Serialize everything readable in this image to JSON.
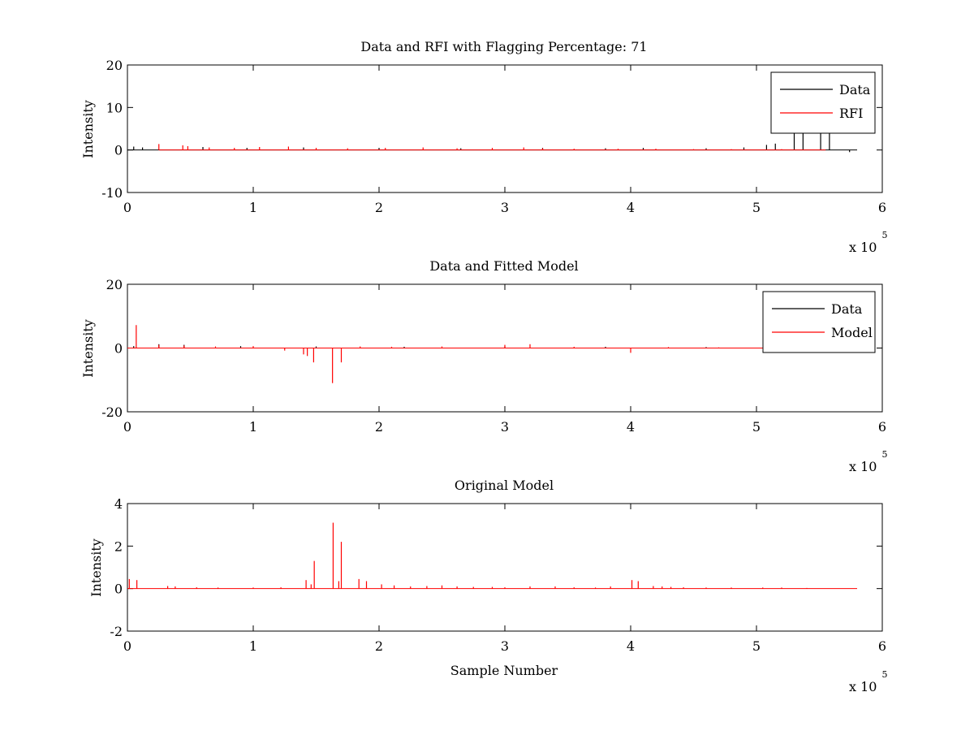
{
  "figure": {
    "background": "#ffffff"
  },
  "colors": {
    "data": "#000000",
    "rfi": "#ff0000",
    "model": "#ff0000",
    "axes": "#000000"
  },
  "chart_data": [
    {
      "type": "line",
      "title": "Data and RFI with Flagging Percentage: 71",
      "xlabel": "",
      "ylabel": "Intensity",
      "xlim": [
        0,
        600000
      ],
      "ylim": [
        -10,
        20
      ],
      "xticks": [
        0,
        1,
        2,
        3,
        4,
        5,
        6
      ],
      "yticks": [
        -10,
        0,
        10,
        20
      ],
      "x_exponent": {
        "base": "x 10",
        "power": "5"
      },
      "grid": false,
      "legend": {
        "position": "top-right",
        "entries": [
          "Data",
          "RFI"
        ]
      },
      "series": [
        {
          "name": "Data",
          "color": "#000000",
          "baseline": 0,
          "x_range": [
            0,
            580000
          ],
          "spikes": [
            [
              5000,
              0.8
            ],
            [
              12000,
              0.6
            ],
            [
              60000,
              0.7
            ],
            [
              95000,
              0.5
            ],
            [
              140000,
              0.6
            ],
            [
              200000,
              0.5
            ],
            [
              265000,
              0.4
            ],
            [
              330000,
              0.5
            ],
            [
              380000,
              0.4
            ],
            [
              410000,
              0.5
            ],
            [
              460000,
              0.4
            ],
            [
              490000,
              0.6
            ],
            [
              508000,
              1.2
            ],
            [
              515000,
              1.5
            ],
            [
              530000,
              4.5
            ],
            [
              537000,
              8.0
            ],
            [
              551000,
              5.5
            ],
            [
              558000,
              6.0
            ],
            [
              574000,
              -0.5
            ]
          ]
        },
        {
          "name": "RFI",
          "color": "#ff0000",
          "baseline": 0,
          "x_range": [
            25000,
            555000
          ],
          "spikes": [
            [
              25000,
              1.4
            ],
            [
              44000,
              1.1
            ],
            [
              48000,
              0.9
            ],
            [
              65000,
              0.6
            ],
            [
              85000,
              0.5
            ],
            [
              105000,
              0.7
            ],
            [
              128000,
              0.8
            ],
            [
              150000,
              0.5
            ],
            [
              175000,
              0.4
            ],
            [
              205000,
              0.5
            ],
            [
              235000,
              0.6
            ],
            [
              262000,
              0.4
            ],
            [
              290000,
              0.5
            ],
            [
              315000,
              0.6
            ],
            [
              330000,
              0.4
            ],
            [
              355000,
              0.3
            ],
            [
              390000,
              0.3
            ],
            [
              420000,
              0.3
            ],
            [
              450000,
              0.2
            ],
            [
              480000,
              0.2
            ],
            [
              520000,
              0.2
            ]
          ]
        }
      ]
    },
    {
      "type": "line",
      "title": "Data and Fitted Model",
      "xlabel": "",
      "ylabel": "Intensity",
      "xlim": [
        0,
        600000
      ],
      "ylim": [
        -20,
        20
      ],
      "xticks": [
        0,
        1,
        2,
        3,
        4,
        5,
        6
      ],
      "yticks": [
        -20,
        0,
        20
      ],
      "x_exponent": {
        "base": "x 10",
        "power": "5"
      },
      "grid": false,
      "legend": {
        "position": "top-right",
        "entries": [
          "Data",
          "Model"
        ]
      },
      "series": [
        {
          "name": "Data",
          "color": "#000000",
          "baseline": 0,
          "x_range": [
            0,
            580000
          ],
          "spikes": [
            [
              5000,
              0.6
            ],
            [
              25000,
              1.2
            ],
            [
              45000,
              1.0
            ],
            [
              90000,
              0.6
            ],
            [
              150000,
              0.5
            ],
            [
              220000,
              0.4
            ],
            [
              300000,
              0.5
            ],
            [
              380000,
              0.4
            ],
            [
              460000,
              0.3
            ],
            [
              515000,
              0.4
            ],
            [
              540000,
              0.5
            ],
            [
              558000,
              0.6
            ],
            [
              574000,
              -0.8
            ]
          ]
        },
        {
          "name": "Model",
          "color": "#ff0000",
          "baseline": 0,
          "x_range": [
            0,
            555000
          ],
          "spikes": [
            [
              7000,
              7.2
            ],
            [
              25000,
              1.0
            ],
            [
              45000,
              0.8
            ],
            [
              70000,
              0.5
            ],
            [
              100000,
              0.6
            ],
            [
              125000,
              -0.8
            ],
            [
              140000,
              -2.0
            ],
            [
              143000,
              -2.5
            ],
            [
              148000,
              -4.5
            ],
            [
              163000,
              -11.0
            ],
            [
              170000,
              -4.5
            ],
            [
              185000,
              0.5
            ],
            [
              210000,
              0.4
            ],
            [
              250000,
              0.5
            ],
            [
              300000,
              1.0
            ],
            [
              320000,
              1.2
            ],
            [
              355000,
              0.4
            ],
            [
              400000,
              -1.5
            ],
            [
              430000,
              0.3
            ],
            [
              470000,
              0.2
            ],
            [
              520000,
              0.2
            ]
          ]
        }
      ]
    },
    {
      "type": "line",
      "title": "Original Model",
      "xlabel": "Sample Number",
      "ylabel": "Intensity",
      "xlim": [
        0,
        600000
      ],
      "ylim": [
        -2,
        4
      ],
      "xticks": [
        0,
        1,
        2,
        3,
        4,
        5,
        6
      ],
      "yticks": [
        -2,
        0,
        2,
        4
      ],
      "x_exponent": {
        "base": "x 10",
        "power": "5"
      },
      "grid": false,
      "legend": null,
      "series": [
        {
          "color": "#ff0000",
          "baseline": 0,
          "x_range": [
            0,
            580000
          ],
          "spikes": [
            [
              1500,
              0.45
            ],
            [
              7500,
              0.4
            ],
            [
              32000,
              0.12
            ],
            [
              38000,
              0.1
            ],
            [
              55000,
              0.06
            ],
            [
              72000,
              0.05
            ],
            [
              100000,
              0.05
            ],
            [
              122000,
              0.06
            ],
            [
              142000,
              0.4
            ],
            [
              146000,
              0.2
            ],
            [
              148500,
              1.3
            ],
            [
              163500,
              3.1
            ],
            [
              168000,
              0.35
            ],
            [
              170000,
              2.2
            ],
            [
              184000,
              0.45
            ],
            [
              190000,
              0.35
            ],
            [
              202000,
              0.2
            ],
            [
              212000,
              0.15
            ],
            [
              225000,
              0.1
            ],
            [
              238000,
              0.12
            ],
            [
              250000,
              0.15
            ],
            [
              262000,
              0.1
            ],
            [
              275000,
              0.08
            ],
            [
              290000,
              0.08
            ],
            [
              300000,
              0.06
            ],
            [
              320000,
              0.1
            ],
            [
              340000,
              0.1
            ],
            [
              355000,
              0.06
            ],
            [
              372000,
              0.05
            ],
            [
              384000,
              0.1
            ],
            [
              401000,
              0.4
            ],
            [
              406000,
              0.35
            ],
            [
              418000,
              0.12
            ],
            [
              425000,
              0.1
            ],
            [
              432000,
              0.08
            ],
            [
              442000,
              0.06
            ],
            [
              460000,
              0.05
            ],
            [
              480000,
              0.05
            ],
            [
              505000,
              0.05
            ],
            [
              520000,
              0.05
            ],
            [
              540000,
              0.03
            ]
          ]
        }
      ]
    }
  ]
}
